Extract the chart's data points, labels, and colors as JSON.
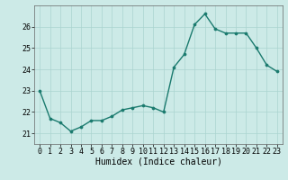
{
  "x": [
    0,
    1,
    2,
    3,
    4,
    5,
    6,
    7,
    8,
    9,
    10,
    11,
    12,
    13,
    14,
    15,
    16,
    17,
    18,
    19,
    20,
    21,
    22,
    23
  ],
  "y": [
    23.0,
    21.7,
    21.5,
    21.1,
    21.3,
    21.6,
    21.6,
    21.8,
    22.1,
    22.2,
    22.3,
    22.2,
    22.0,
    24.1,
    24.7,
    26.1,
    26.6,
    25.9,
    25.7,
    25.7,
    25.7,
    25.0,
    24.2,
    23.9
  ],
  "line_color": "#1a7a6e",
  "marker_color": "#1a7a6e",
  "bg_color": "#cceae7",
  "grid_color": "#aad4d0",
  "xlabel": "Humidex (Indice chaleur)",
  "xlim": [
    -0.5,
    23.5
  ],
  "ylim": [
    20.5,
    27.0
  ],
  "yticks": [
    21,
    22,
    23,
    24,
    25,
    26
  ],
  "xticks": [
    0,
    1,
    2,
    3,
    4,
    5,
    6,
    7,
    8,
    9,
    10,
    11,
    12,
    13,
    14,
    15,
    16,
    17,
    18,
    19,
    20,
    21,
    22,
    23
  ],
  "xlabel_fontsize": 7,
  "tick_fontsize": 6,
  "linewidth": 1.0,
  "markersize": 2.2
}
